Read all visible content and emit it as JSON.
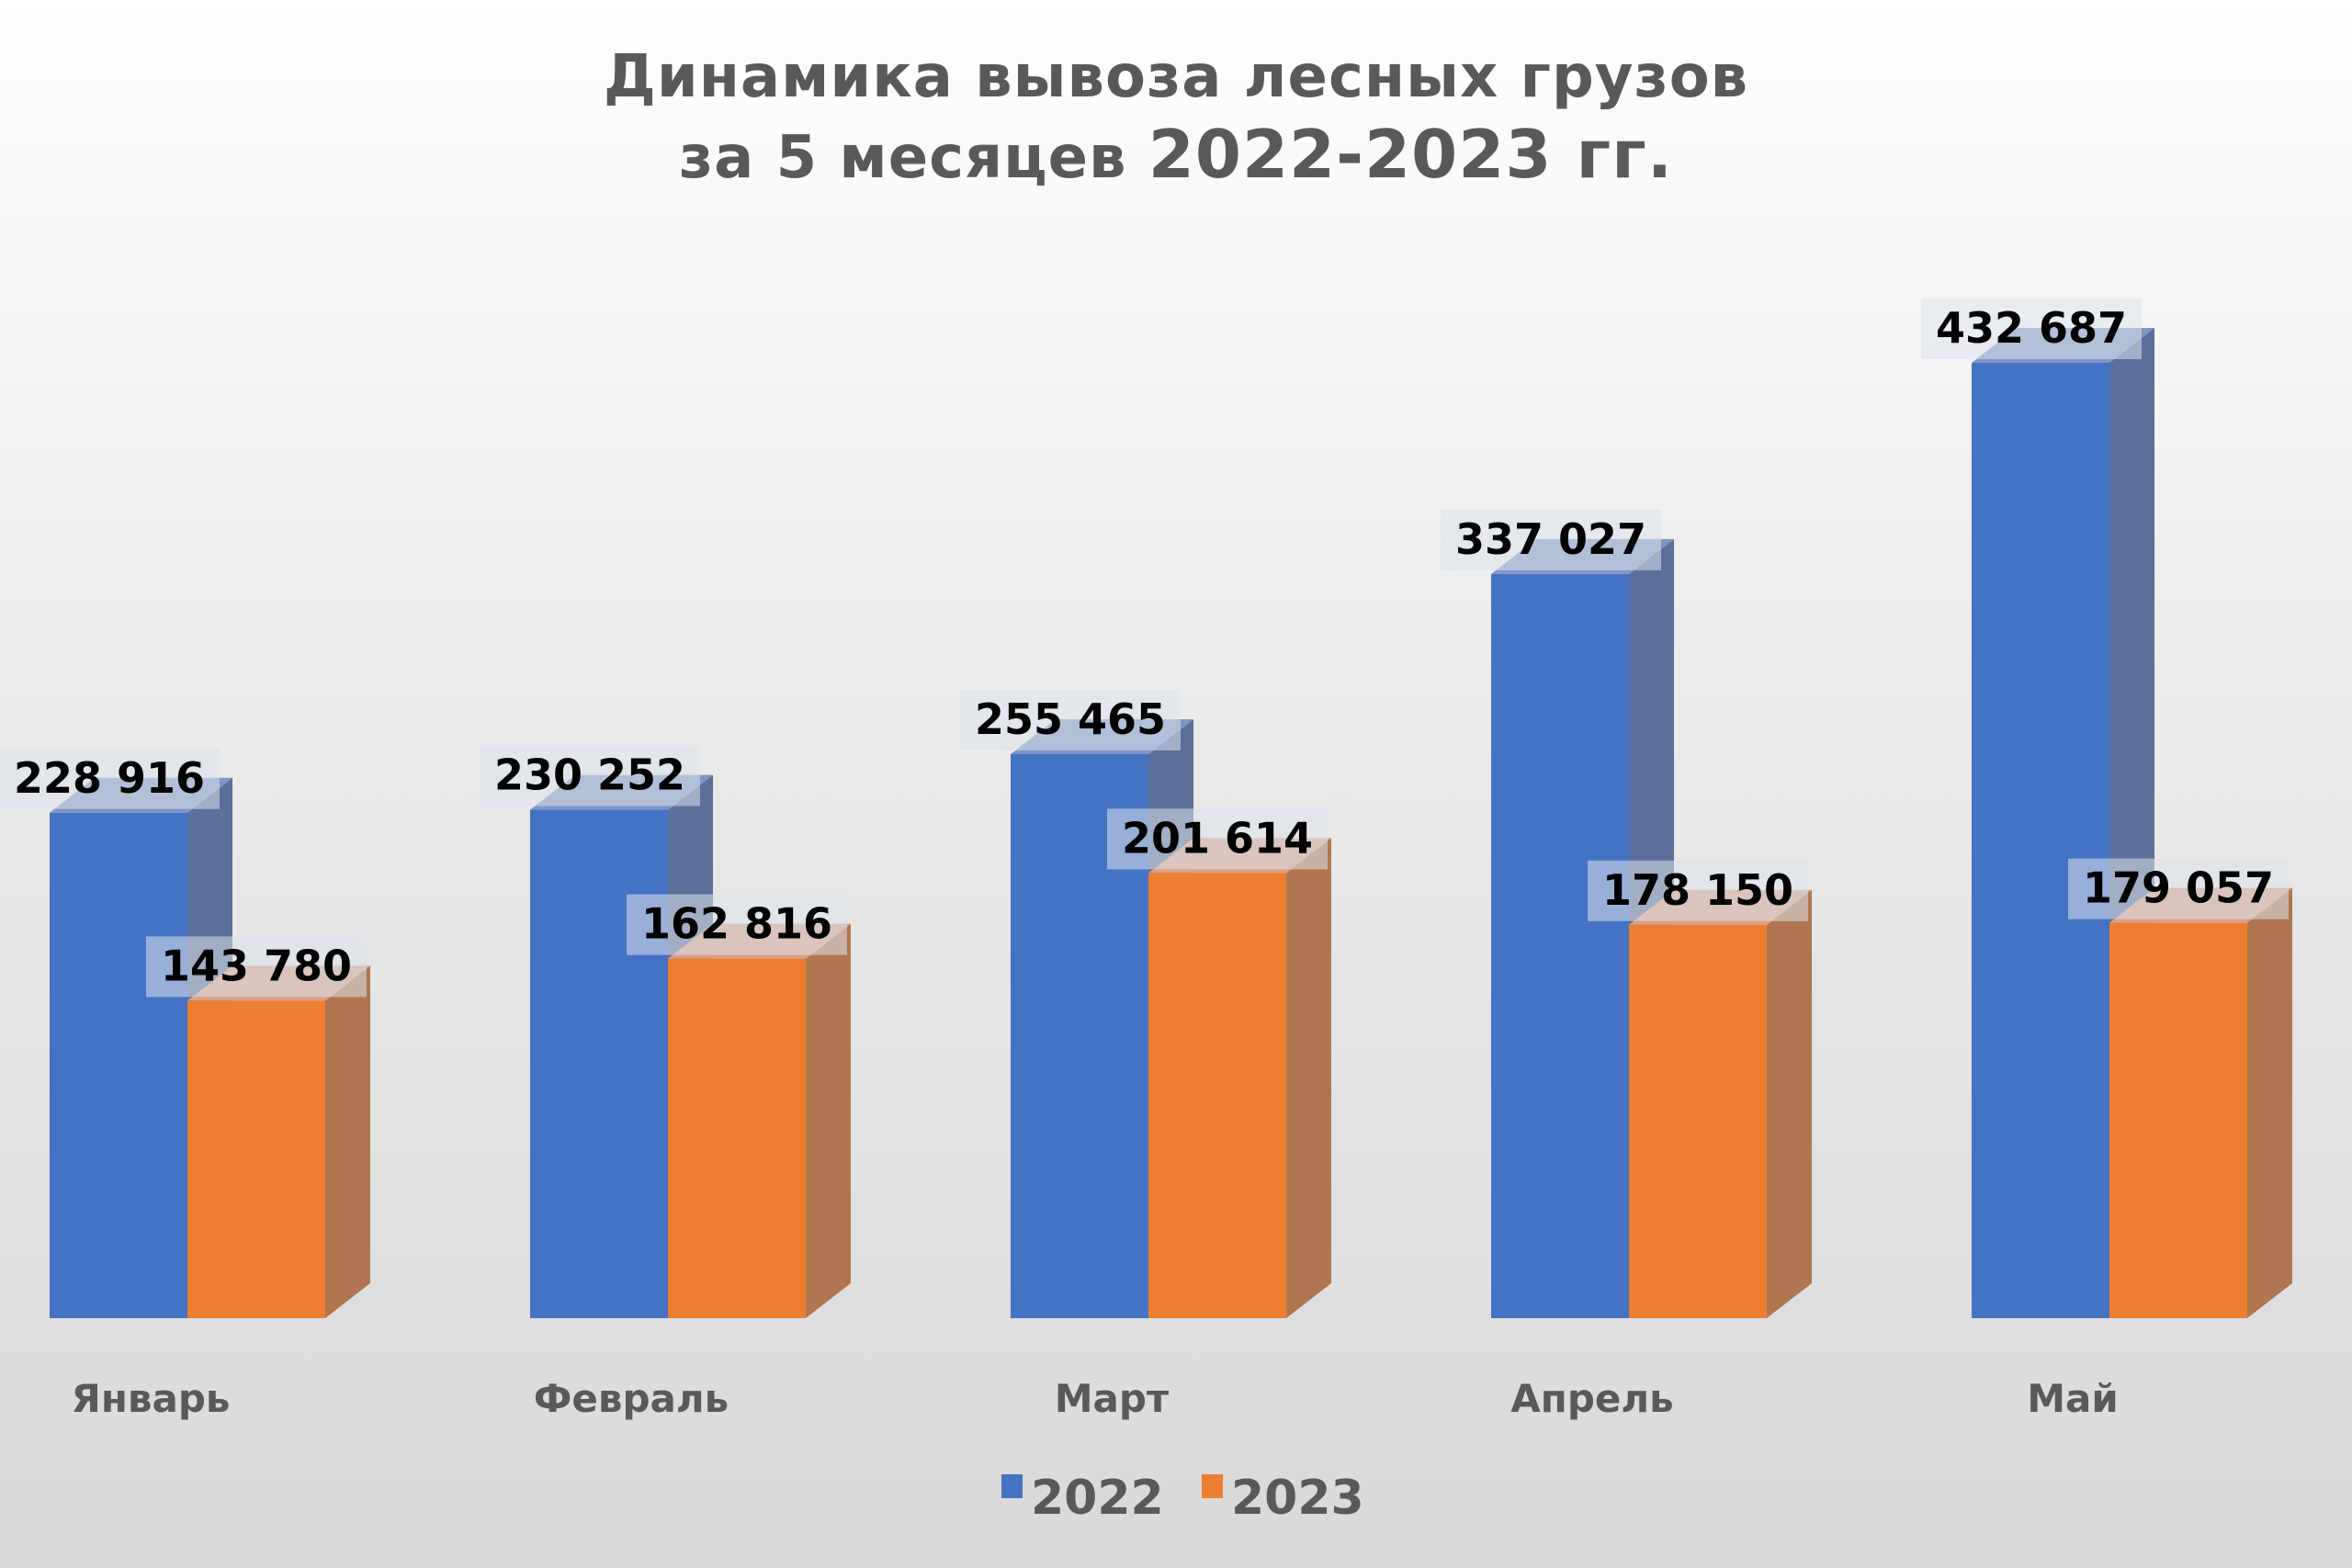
{
  "chart_data": {
    "type": "bar",
    "title_line1": "Динамика вывоза лесных грузов",
    "title_line2_prefix": "за 5 месяцев",
    "title_line2_years": "2022-2023 гг.",
    "categories": [
      "Январь",
      "Февраль",
      "Март",
      "Апрель",
      "Май"
    ],
    "series": [
      {
        "name": "2022",
        "color": "#4472C4",
        "values": [
          228916,
          230252,
          255465,
          337027,
          432687
        ],
        "labels": [
          "228 916",
          "230 252",
          "255 465",
          "337 027",
          "432 687"
        ]
      },
      {
        "name": "2023",
        "color": "#ED7D31",
        "values": [
          143780,
          162816,
          201614,
          178150,
          179057
        ],
        "labels": [
          "143 780",
          "162 816",
          "201 614",
          "178 150",
          "179 057"
        ]
      }
    ],
    "style": "3d-clustered-column",
    "axes_visible": false,
    "grid": false,
    "legend_position": "bottom",
    "ylim": [
      0,
      432687
    ]
  }
}
